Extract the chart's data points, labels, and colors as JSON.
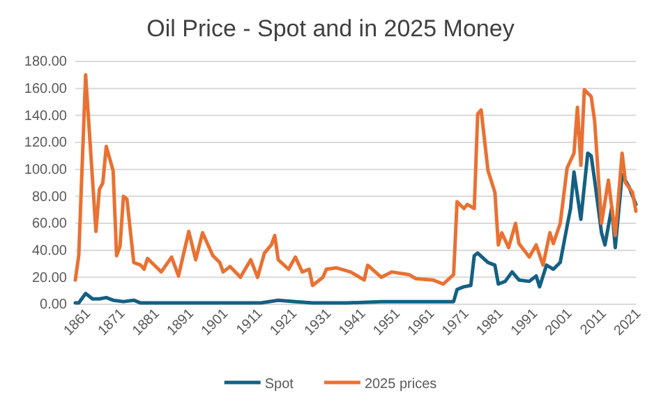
{
  "chart_data": {
    "type": "line",
    "title": "Oil Price - Spot and in 2025 Money",
    "xlim": [
      1861,
      2024
    ],
    "xticks": [
      1861,
      1871,
      1881,
      1891,
      1901,
      1911,
      1921,
      1931,
      1941,
      1951,
      1961,
      1971,
      1981,
      1991,
      2001,
      2011,
      2021
    ],
    "ylim": [
      0,
      180
    ],
    "yticks": [
      {
        "value": 0,
        "label": "0.00"
      },
      {
        "value": 20,
        "label": "20.00"
      },
      {
        "value": 40,
        "label": "40.00"
      },
      {
        "value": 60,
        "label": "60.00"
      },
      {
        "value": 80,
        "label": "80.00"
      },
      {
        "value": 100,
        "label": "100.00"
      },
      {
        "value": 120,
        "label": "120.00"
      },
      {
        "value": 140,
        "label": "140.00"
      },
      {
        "value": 160,
        "label": "160.00"
      },
      {
        "value": 180,
        "label": "180.00"
      }
    ],
    "grid": "y",
    "legend": "bottom",
    "marker": "none",
    "line_style": "solid",
    "series": [
      {
        "name": "Spot",
        "color": "#156082",
        "x": [
          1861,
          1862,
          1864,
          1866,
          1868,
          1870,
          1872,
          1875,
          1878,
          1880,
          1890,
          1900,
          1910,
          1915,
          1920,
          1925,
          1930,
          1940,
          1950,
          1960,
          1971,
          1972,
          1974,
          1976,
          1977,
          1978,
          1981,
          1983,
          1984,
          1986,
          1988,
          1990,
          1993,
          1995,
          1996,
          1998,
          2000,
          2002,
          2004,
          2005,
          2006,
          2008,
          2010,
          2011,
          2012,
          2014,
          2015,
          2017,
          2018,
          2020,
          2022,
          2024
        ],
        "values": [
          1,
          1,
          8,
          4,
          4,
          5,
          3,
          2,
          3,
          1,
          1,
          1,
          1,
          1,
          3,
          2,
          1,
          1,
          2,
          2,
          2,
          11,
          13,
          14,
          36,
          38,
          31,
          29,
          15,
          17,
          24,
          18,
          17,
          21,
          13,
          29,
          26,
          31,
          58,
          71,
          98,
          63,
          112,
          110,
          92,
          53,
          44,
          72,
          42,
          96,
          87,
          74
        ]
      },
      {
        "name": "2025 prices",
        "color": "#e97132",
        "x": [
          1861,
          1862,
          1864,
          1867,
          1868,
          1869,
          1870,
          1872,
          1873,
          1874,
          1875,
          1876,
          1878,
          1880,
          1881,
          1882,
          1884,
          1886,
          1889,
          1891,
          1894,
          1896,
          1898,
          1901,
          1903,
          1904,
          1906,
          1909,
          1912,
          1914,
          1916,
          1918,
          1919,
          1920,
          1923,
          1925,
          1927,
          1929,
          1930,
          1933,
          1934,
          1937,
          1941,
          1945,
          1946,
          1950,
          1953,
          1958,
          1960,
          1965,
          1968,
          1971,
          1972,
          1974,
          1975,
          1977,
          1978,
          1979,
          1981,
          1983,
          1984,
          1985,
          1987,
          1989,
          1990,
          1993,
          1995,
          1997,
          1999,
          2000,
          2002,
          2004,
          2006,
          2007,
          2008,
          2009,
          2011,
          2012,
          2014,
          2016,
          2018,
          2020,
          2021,
          2023,
          2024
        ],
        "values": [
          18,
          36,
          170,
          54,
          85,
          90,
          117,
          99,
          36,
          43,
          80,
          78,
          31,
          29,
          26,
          34,
          29,
          24,
          35,
          21,
          54,
          33,
          53,
          36,
          31,
          24,
          28,
          20,
          33,
          20,
          38,
          44,
          51,
          33,
          26,
          35,
          24,
          26,
          14,
          20,
          26,
          27,
          24,
          18,
          29,
          20,
          24,
          22,
          19,
          18,
          15,
          22,
          76,
          71,
          74,
          71,
          141,
          144,
          99,
          83,
          44,
          53,
          42,
          60,
          45,
          35,
          44,
          29,
          53,
          45,
          60,
          101,
          112,
          146,
          103,
          159,
          154,
          136,
          60,
          92,
          51,
          112,
          90,
          83,
          69
        ]
      }
    ]
  }
}
